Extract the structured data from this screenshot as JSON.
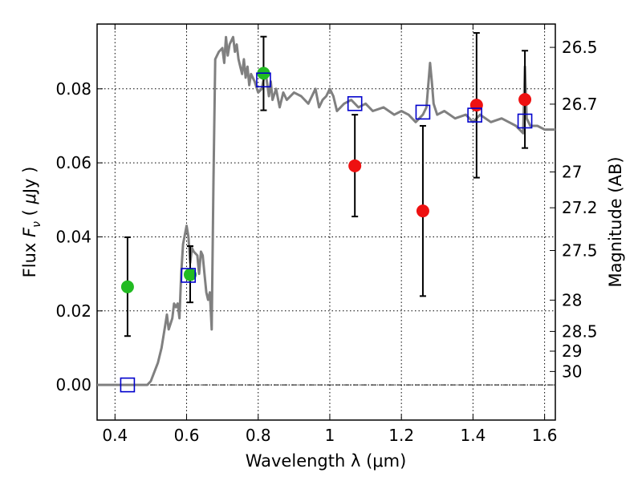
{
  "chart_data": {
    "type": "scatter",
    "xlabel": "Wavelength  λ (μm)",
    "ylabel": "Flux  F_ν  ( μJy )",
    "ylabel_parts": {
      "prefix": "Flux  ",
      "sym": "F",
      "sub": "ν",
      "mid": "  ( ",
      "mu": "μ",
      "unit": "Jy )"
    },
    "y2label": "Magnitude (AB)",
    "xlim": [
      0.35,
      1.63
    ],
    "ylim": [
      -0.0095,
      0.0975
    ],
    "xticks": [
      0.4,
      0.6,
      0.8,
      1.0,
      1.2,
      1.4,
      1.6
    ],
    "xtick_labels": [
      "0.4",
      "0.6",
      "0.8",
      "1",
      "1.2",
      "1.4",
      "1.6"
    ],
    "yticks": [
      0.0,
      0.02,
      0.04,
      0.06,
      0.08
    ],
    "ytick_labels": [
      "0.00",
      "0.02",
      "0.04",
      "0.06",
      "0.08"
    ],
    "y2ticks": [
      26.5,
      26.7,
      27,
      27.2,
      27.5,
      28,
      28.5,
      29,
      30
    ],
    "y2tick_labels": [
      "26.5",
      "26.7",
      "27",
      "27.2",
      "27.5",
      "28",
      "28.5",
      "29",
      "30"
    ],
    "grid": true,
    "zero_line": true,
    "colors": {
      "model": "#808080",
      "green": "#22bb22",
      "red": "#ee1111",
      "square": "#0000cc",
      "errorbar": "#000000"
    },
    "series": [
      {
        "kind": "line",
        "color": "#808080",
        "x": [
          0.35,
          0.4,
          0.45,
          0.49,
          0.5,
          0.52,
          0.53,
          0.54,
          0.545,
          0.55,
          0.56,
          0.565,
          0.57,
          0.575,
          0.58,
          0.585,
          0.59,
          0.6,
          0.605,
          0.61,
          0.615,
          0.62,
          0.63,
          0.635,
          0.64,
          0.645,
          0.65,
          0.655,
          0.66,
          0.665,
          0.67,
          0.675,
          0.68,
          0.69,
          0.7,
          0.705,
          0.71,
          0.715,
          0.72,
          0.73,
          0.735,
          0.74,
          0.745,
          0.75,
          0.755,
          0.76,
          0.765,
          0.77,
          0.775,
          0.78,
          0.79,
          0.8,
          0.81,
          0.82,
          0.83,
          0.835,
          0.84,
          0.85,
          0.86,
          0.87,
          0.88,
          0.9,
          0.92,
          0.94,
          0.96,
          0.97,
          0.98,
          0.99,
          1.0,
          1.01,
          1.02,
          1.04,
          1.06,
          1.08,
          1.1,
          1.12,
          1.15,
          1.18,
          1.2,
          1.22,
          1.24,
          1.26,
          1.27,
          1.28,
          1.285,
          1.29,
          1.3,
          1.32,
          1.35,
          1.38,
          1.4,
          1.42,
          1.45,
          1.48,
          1.5,
          1.52,
          1.54,
          1.545,
          1.55,
          1.56,
          1.58,
          1.6,
          1.63
        ],
        "y": [
          0.0,
          0.0,
          0.0,
          0.0,
          0.001,
          0.006,
          0.01,
          0.016,
          0.019,
          0.015,
          0.018,
          0.022,
          0.021,
          0.022,
          0.018,
          0.03,
          0.038,
          0.043,
          0.04,
          0.033,
          0.037,
          0.036,
          0.035,
          0.03,
          0.036,
          0.035,
          0.03,
          0.025,
          0.023,
          0.025,
          0.015,
          0.055,
          0.088,
          0.09,
          0.091,
          0.087,
          0.094,
          0.089,
          0.092,
          0.094,
          0.09,
          0.092,
          0.088,
          0.086,
          0.084,
          0.088,
          0.083,
          0.086,
          0.081,
          0.084,
          0.082,
          0.079,
          0.08,
          0.085,
          0.078,
          0.082,
          0.077,
          0.08,
          0.075,
          0.079,
          0.077,
          0.079,
          0.078,
          0.076,
          0.08,
          0.075,
          0.077,
          0.078,
          0.08,
          0.078,
          0.074,
          0.076,
          0.077,
          0.075,
          0.076,
          0.074,
          0.075,
          0.073,
          0.074,
          0.073,
          0.071,
          0.073,
          0.075,
          0.087,
          0.082,
          0.076,
          0.073,
          0.074,
          0.072,
          0.073,
          0.071,
          0.073,
          0.071,
          0.072,
          0.071,
          0.07,
          0.068,
          0.086,
          0.072,
          0.07,
          0.07,
          0.069,
          0.069
        ]
      },
      {
        "kind": "markers",
        "marker": "circle",
        "color": "#22bb22",
        "x": [
          0.435,
          0.61,
          0.815
        ],
        "y": [
          0.0265,
          0.0298,
          0.0842
        ],
        "yerr_low": [
          0.0132,
          0.0223,
          0.0742
        ],
        "yerr_high": [
          0.0399,
          0.0375,
          0.0941
        ]
      },
      {
        "kind": "markers",
        "marker": "circle",
        "color": "#ee1111",
        "x": [
          1.07,
          1.26,
          1.41,
          1.545
        ],
        "y": [
          0.0592,
          0.047,
          0.0756,
          0.0771
        ],
        "yerr_low": [
          0.0455,
          0.024,
          0.056,
          0.064
        ],
        "yerr_high": [
          0.073,
          0.07,
          0.0951,
          0.0903
        ]
      },
      {
        "kind": "markers",
        "marker": "open-square",
        "color": "#0000cc",
        "x": [
          0.435,
          0.605,
          0.815,
          1.07,
          1.26,
          1.405,
          1.545
        ],
        "y": [
          0.0,
          0.0296,
          0.0824,
          0.076,
          0.0737,
          0.0729,
          0.0713
        ]
      }
    ]
  }
}
